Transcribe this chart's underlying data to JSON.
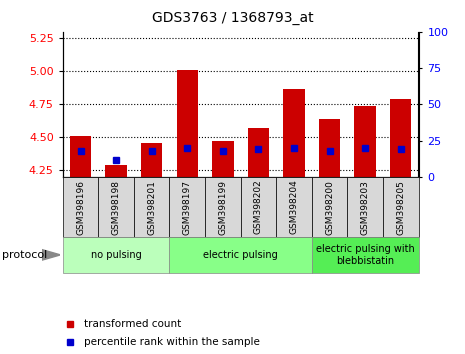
{
  "title": "GDS3763 / 1368793_at",
  "samples": [
    "GSM398196",
    "GSM398198",
    "GSM398201",
    "GSM398197",
    "GSM398199",
    "GSM398202",
    "GSM398204",
    "GSM398200",
    "GSM398203",
    "GSM398205"
  ],
  "transformed_count": [
    4.51,
    4.29,
    4.46,
    5.01,
    4.47,
    4.57,
    4.87,
    4.64,
    4.74,
    4.79
  ],
  "percentile_rank": [
    18,
    12,
    18,
    20,
    18,
    19,
    20,
    18,
    20,
    19
  ],
  "ylim_left": [
    4.2,
    5.3
  ],
  "ylim_right": [
    0,
    100
  ],
  "yticks_left": [
    4.25,
    4.5,
    4.75,
    5.0,
    5.25
  ],
  "yticks_right": [
    0,
    25,
    50,
    75,
    100
  ],
  "bar_color_red": "#cc0000",
  "bar_color_blue": "#0000cc",
  "groups": [
    {
      "label": "no pulsing",
      "start": 0,
      "end": 3,
      "color": "#bbffbb"
    },
    {
      "label": "electric pulsing",
      "start": 3,
      "end": 7,
      "color": "#88ff88"
    },
    {
      "label": "electric pulsing with\nblebbistatin",
      "start": 7,
      "end": 10,
      "color": "#55ee55"
    }
  ],
  "legend_items": [
    {
      "label": "transformed count",
      "color": "#cc0000"
    },
    {
      "label": "percentile rank within the sample",
      "color": "#0000cc"
    }
  ],
  "protocol_label": "protocol",
  "bar_width": 0.6,
  "base": 4.2
}
